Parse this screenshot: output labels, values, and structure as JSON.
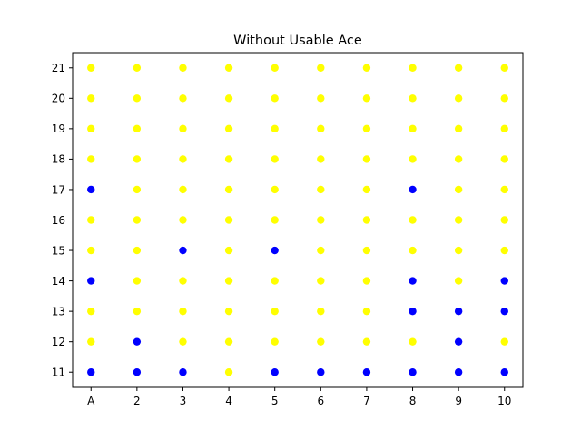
{
  "chart_data": {
    "type": "scatter",
    "title": "Without Usable Ace",
    "xlabel": "",
    "ylabel": "",
    "x_ticks": [
      "A",
      "2",
      "3",
      "4",
      "5",
      "6",
      "7",
      "8",
      "9",
      "10"
    ],
    "y_ticks": [
      "11",
      "12",
      "13",
      "14",
      "15",
      "16",
      "17",
      "18",
      "19",
      "20",
      "21"
    ],
    "xlim": [
      0.6,
      10.4
    ],
    "ylim": [
      10.5,
      21.5
    ],
    "grid": false,
    "legend": "none",
    "colors": {
      "0": "#ffff00",
      "1": "#0000ff"
    },
    "points": [
      {
        "x": 1,
        "y": 11,
        "c": 1
      },
      {
        "x": 2,
        "y": 11,
        "c": 1
      },
      {
        "x": 3,
        "y": 11,
        "c": 1
      },
      {
        "x": 4,
        "y": 11,
        "c": 0
      },
      {
        "x": 5,
        "y": 11,
        "c": 1
      },
      {
        "x": 6,
        "y": 11,
        "c": 1
      },
      {
        "x": 7,
        "y": 11,
        "c": 1
      },
      {
        "x": 8,
        "y": 11,
        "c": 1
      },
      {
        "x": 9,
        "y": 11,
        "c": 1
      },
      {
        "x": 10,
        "y": 11,
        "c": 1
      },
      {
        "x": 1,
        "y": 12,
        "c": 0
      },
      {
        "x": 2,
        "y": 12,
        "c": 1
      },
      {
        "x": 3,
        "y": 12,
        "c": 0
      },
      {
        "x": 4,
        "y": 12,
        "c": 0
      },
      {
        "x": 5,
        "y": 12,
        "c": 0
      },
      {
        "x": 6,
        "y": 12,
        "c": 0
      },
      {
        "x": 7,
        "y": 12,
        "c": 0
      },
      {
        "x": 8,
        "y": 12,
        "c": 0
      },
      {
        "x": 9,
        "y": 12,
        "c": 1
      },
      {
        "x": 10,
        "y": 12,
        "c": 0
      },
      {
        "x": 1,
        "y": 13,
        "c": 0
      },
      {
        "x": 2,
        "y": 13,
        "c": 0
      },
      {
        "x": 3,
        "y": 13,
        "c": 0
      },
      {
        "x": 4,
        "y": 13,
        "c": 0
      },
      {
        "x": 5,
        "y": 13,
        "c": 0
      },
      {
        "x": 6,
        "y": 13,
        "c": 0
      },
      {
        "x": 7,
        "y": 13,
        "c": 0
      },
      {
        "x": 8,
        "y": 13,
        "c": 1
      },
      {
        "x": 9,
        "y": 13,
        "c": 1
      },
      {
        "x": 10,
        "y": 13,
        "c": 1
      },
      {
        "x": 1,
        "y": 14,
        "c": 1
      },
      {
        "x": 2,
        "y": 14,
        "c": 0
      },
      {
        "x": 3,
        "y": 14,
        "c": 0
      },
      {
        "x": 4,
        "y": 14,
        "c": 0
      },
      {
        "x": 5,
        "y": 14,
        "c": 0
      },
      {
        "x": 6,
        "y": 14,
        "c": 0
      },
      {
        "x": 7,
        "y": 14,
        "c": 0
      },
      {
        "x": 8,
        "y": 14,
        "c": 1
      },
      {
        "x": 9,
        "y": 14,
        "c": 0
      },
      {
        "x": 10,
        "y": 14,
        "c": 1
      },
      {
        "x": 1,
        "y": 15,
        "c": 0
      },
      {
        "x": 2,
        "y": 15,
        "c": 0
      },
      {
        "x": 3,
        "y": 15,
        "c": 1
      },
      {
        "x": 4,
        "y": 15,
        "c": 0
      },
      {
        "x": 5,
        "y": 15,
        "c": 1
      },
      {
        "x": 6,
        "y": 15,
        "c": 0
      },
      {
        "x": 7,
        "y": 15,
        "c": 0
      },
      {
        "x": 8,
        "y": 15,
        "c": 0
      },
      {
        "x": 9,
        "y": 15,
        "c": 0
      },
      {
        "x": 10,
        "y": 15,
        "c": 0
      },
      {
        "x": 1,
        "y": 16,
        "c": 0
      },
      {
        "x": 2,
        "y": 16,
        "c": 0
      },
      {
        "x": 3,
        "y": 16,
        "c": 0
      },
      {
        "x": 4,
        "y": 16,
        "c": 0
      },
      {
        "x": 5,
        "y": 16,
        "c": 0
      },
      {
        "x": 6,
        "y": 16,
        "c": 0
      },
      {
        "x": 7,
        "y": 16,
        "c": 0
      },
      {
        "x": 8,
        "y": 16,
        "c": 0
      },
      {
        "x": 9,
        "y": 16,
        "c": 0
      },
      {
        "x": 10,
        "y": 16,
        "c": 0
      },
      {
        "x": 1,
        "y": 17,
        "c": 1
      },
      {
        "x": 2,
        "y": 17,
        "c": 0
      },
      {
        "x": 3,
        "y": 17,
        "c": 0
      },
      {
        "x": 4,
        "y": 17,
        "c": 0
      },
      {
        "x": 5,
        "y": 17,
        "c": 0
      },
      {
        "x": 6,
        "y": 17,
        "c": 0
      },
      {
        "x": 7,
        "y": 17,
        "c": 0
      },
      {
        "x": 8,
        "y": 17,
        "c": 1
      },
      {
        "x": 9,
        "y": 17,
        "c": 0
      },
      {
        "x": 10,
        "y": 17,
        "c": 0
      },
      {
        "x": 1,
        "y": 18,
        "c": 0
      },
      {
        "x": 2,
        "y": 18,
        "c": 0
      },
      {
        "x": 3,
        "y": 18,
        "c": 0
      },
      {
        "x": 4,
        "y": 18,
        "c": 0
      },
      {
        "x": 5,
        "y": 18,
        "c": 0
      },
      {
        "x": 6,
        "y": 18,
        "c": 0
      },
      {
        "x": 7,
        "y": 18,
        "c": 0
      },
      {
        "x": 8,
        "y": 18,
        "c": 0
      },
      {
        "x": 9,
        "y": 18,
        "c": 0
      },
      {
        "x": 10,
        "y": 18,
        "c": 0
      },
      {
        "x": 1,
        "y": 19,
        "c": 0
      },
      {
        "x": 2,
        "y": 19,
        "c": 0
      },
      {
        "x": 3,
        "y": 19,
        "c": 0
      },
      {
        "x": 4,
        "y": 19,
        "c": 0
      },
      {
        "x": 5,
        "y": 19,
        "c": 0
      },
      {
        "x": 6,
        "y": 19,
        "c": 0
      },
      {
        "x": 7,
        "y": 19,
        "c": 0
      },
      {
        "x": 8,
        "y": 19,
        "c": 0
      },
      {
        "x": 9,
        "y": 19,
        "c": 0
      },
      {
        "x": 10,
        "y": 19,
        "c": 0
      },
      {
        "x": 1,
        "y": 20,
        "c": 0
      },
      {
        "x": 2,
        "y": 20,
        "c": 0
      },
      {
        "x": 3,
        "y": 20,
        "c": 0
      },
      {
        "x": 4,
        "y": 20,
        "c": 0
      },
      {
        "x": 5,
        "y": 20,
        "c": 0
      },
      {
        "x": 6,
        "y": 20,
        "c": 0
      },
      {
        "x": 7,
        "y": 20,
        "c": 0
      },
      {
        "x": 8,
        "y": 20,
        "c": 0
      },
      {
        "x": 9,
        "y": 20,
        "c": 0
      },
      {
        "x": 10,
        "y": 20,
        "c": 0
      },
      {
        "x": 1,
        "y": 21,
        "c": 0
      },
      {
        "x": 2,
        "y": 21,
        "c": 0
      },
      {
        "x": 3,
        "y": 21,
        "c": 0
      },
      {
        "x": 4,
        "y": 21,
        "c": 0
      },
      {
        "x": 5,
        "y": 21,
        "c": 0
      },
      {
        "x": 6,
        "y": 21,
        "c": 0
      },
      {
        "x": 7,
        "y": 21,
        "c": 0
      },
      {
        "x": 8,
        "y": 21,
        "c": 0
      },
      {
        "x": 9,
        "y": 21,
        "c": 0
      },
      {
        "x": 10,
        "y": 21,
        "c": 0
      }
    ]
  }
}
